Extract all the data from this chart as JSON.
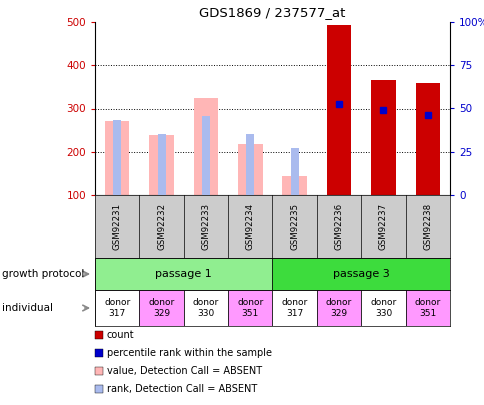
{
  "title": "GDS1869 / 237577_at",
  "samples": [
    "GSM92231",
    "GSM92232",
    "GSM92233",
    "GSM92234",
    "GSM92235",
    "GSM92236",
    "GSM92237",
    "GSM92238"
  ],
  "count_values": [
    null,
    null,
    null,
    null,
    null,
    493,
    365,
    358
  ],
  "value_absent": [
    270,
    238,
    325,
    218,
    143,
    null,
    null,
    null
  ],
  "rank_absent": [
    273,
    242,
    282,
    242,
    209,
    null,
    null,
    null
  ],
  "percentile_rank": [
    null,
    null,
    null,
    null,
    null,
    310,
    297,
    285
  ],
  "ylim_left": [
    100,
    500
  ],
  "ylim_right": [
    0,
    100
  ],
  "yticks_left": [
    100,
    200,
    300,
    400,
    500
  ],
  "yticks_right": [
    0,
    25,
    50,
    75,
    100
  ],
  "ytick_labels_right": [
    "0",
    "25",
    "50",
    "75",
    "100%"
  ],
  "passage_groups": [
    {
      "label": "passage 1",
      "start": 0,
      "end": 3,
      "color": "#90EE90"
    },
    {
      "label": "passage 3",
      "start": 4,
      "end": 7,
      "color": "#3DDC3D"
    }
  ],
  "individuals": [
    {
      "label": "donor\n317",
      "color": "#ffffff"
    },
    {
      "label": "donor\n329",
      "color": "#FF99FF"
    },
    {
      "label": "donor\n330",
      "color": "#ffffff"
    },
    {
      "label": "donor\n351",
      "color": "#FF99FF"
    },
    {
      "label": "donor\n317",
      "color": "#ffffff"
    },
    {
      "label": "donor\n329",
      "color": "#FF99FF"
    },
    {
      "label": "donor\n330",
      "color": "#ffffff"
    },
    {
      "label": "donor\n351",
      "color": "#FF99FF"
    }
  ],
  "count_color": "#CC0000",
  "value_absent_color": "#FFB6B6",
  "rank_absent_color": "#AABBEE",
  "percentile_color": "#0000CC",
  "axis_color_left": "#CC0000",
  "axis_color_right": "#0000CC",
  "background_color": "#ffffff",
  "tick_area_color": "#CCCCCC",
  "growth_protocol_label": "growth protocol",
  "individual_label": "individual",
  "legend_items": [
    {
      "color": "#CC0000",
      "label": "count"
    },
    {
      "color": "#0000CC",
      "label": "percentile rank within the sample"
    },
    {
      "color": "#FFB6B6",
      "label": "value, Detection Call = ABSENT"
    },
    {
      "color": "#AABBEE",
      "label": "rank, Detection Call = ABSENT"
    }
  ]
}
